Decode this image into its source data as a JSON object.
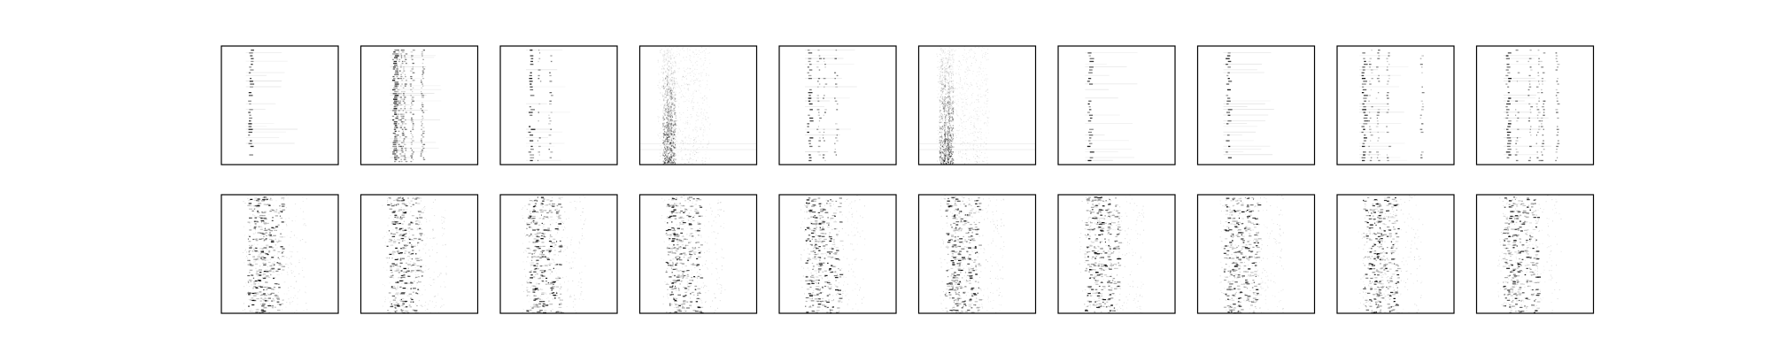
{
  "figure": {
    "background": "#ffffff",
    "frame_color": "#000000",
    "ink_color": "#000000"
  },
  "chart_data": [
    {
      "type": "heatmap",
      "row": 1,
      "col": 1,
      "pattern": "sparse-single-column",
      "columns": [
        0.24
      ],
      "density": 0.5,
      "axes_ticks": false,
      "grid": false
    },
    {
      "type": "heatmap",
      "row": 1,
      "col": 2,
      "pattern": "dense-columns",
      "columns": [
        0.28,
        0.31,
        0.34,
        0.37,
        0.43,
        0.52
      ],
      "density": 0.85,
      "axes_ticks": false,
      "grid": false
    },
    {
      "type": "heatmap",
      "row": 1,
      "col": 3,
      "pattern": "sparse-columns",
      "columns": [
        0.25,
        0.33,
        0.42
      ],
      "density": 0.45,
      "axes_ticks": false,
      "grid": false
    },
    {
      "type": "heatmap",
      "row": 1,
      "col": 4,
      "pattern": "vertical-band-noise",
      "columns": [
        0.22,
        0.25,
        0.28
      ],
      "density": 0.9,
      "axes_ticks": false,
      "grid": false
    },
    {
      "type": "heatmap",
      "row": 1,
      "col": 5,
      "pattern": "sparse-columns",
      "columns": [
        0.25,
        0.33,
        0.38,
        0.48
      ],
      "density": 0.55,
      "axes_ticks": false,
      "grid": false
    },
    {
      "type": "heatmap",
      "row": 1,
      "col": 6,
      "pattern": "vertical-band-noise",
      "columns": [
        0.2,
        0.24,
        0.27
      ],
      "density": 0.9,
      "axes_ticks": false,
      "grid": false
    },
    {
      "type": "heatmap",
      "row": 1,
      "col": 7,
      "pattern": "sparse-single-column",
      "columns": [
        0.26
      ],
      "density": 0.4,
      "axes_ticks": false,
      "grid": false
    },
    {
      "type": "heatmap",
      "row": 1,
      "col": 8,
      "pattern": "sparse-single-column",
      "columns": [
        0.25
      ],
      "density": 0.3,
      "axes_ticks": false,
      "grid": false
    },
    {
      "type": "heatmap",
      "row": 1,
      "col": 9,
      "pattern": "sparse-columns",
      "columns": [
        0.22,
        0.28,
        0.34,
        0.43,
        0.72
      ],
      "density": 0.6,
      "axes_ticks": false,
      "grid": false
    },
    {
      "type": "heatmap",
      "row": 1,
      "col": 10,
      "pattern": "sparse-columns",
      "columns": [
        0.26,
        0.34,
        0.45,
        0.52,
        0.56,
        0.68
      ],
      "density": 0.6,
      "axes_ticks": false,
      "grid": false
    },
    {
      "type": "heatmap",
      "row": 2,
      "col": 1,
      "pattern": "repeated-blocks",
      "columns": [
        0.25,
        0.3,
        0.36,
        0.45
      ],
      "density": 0.8,
      "axes_ticks": false,
      "grid": false
    },
    {
      "type": "heatmap",
      "row": 2,
      "col": 2,
      "pattern": "repeated-blocks",
      "columns": [
        0.25,
        0.3,
        0.36,
        0.45
      ],
      "density": 0.8,
      "axes_ticks": false,
      "grid": false
    },
    {
      "type": "heatmap",
      "row": 2,
      "col": 3,
      "pattern": "repeated-blocks",
      "columns": [
        0.25,
        0.3,
        0.36,
        0.45
      ],
      "density": 0.8,
      "axes_ticks": false,
      "grid": false
    },
    {
      "type": "heatmap",
      "row": 2,
      "col": 4,
      "pattern": "repeated-blocks",
      "columns": [
        0.25,
        0.3,
        0.36,
        0.45
      ],
      "density": 0.8,
      "axes_ticks": false,
      "grid": false
    },
    {
      "type": "heatmap",
      "row": 2,
      "col": 5,
      "pattern": "repeated-blocks",
      "columns": [
        0.25,
        0.3,
        0.36,
        0.45
      ],
      "density": 0.8,
      "axes_ticks": false,
      "grid": false
    },
    {
      "type": "heatmap",
      "row": 2,
      "col": 6,
      "pattern": "repeated-blocks",
      "columns": [
        0.25,
        0.3,
        0.36,
        0.45
      ],
      "density": 0.8,
      "axes_ticks": false,
      "grid": false
    },
    {
      "type": "heatmap",
      "row": 2,
      "col": 7,
      "pattern": "repeated-blocks",
      "columns": [
        0.25,
        0.3,
        0.36,
        0.45
      ],
      "density": 0.8,
      "axes_ticks": false,
      "grid": false
    },
    {
      "type": "heatmap",
      "row": 2,
      "col": 8,
      "pattern": "repeated-blocks",
      "columns": [
        0.25,
        0.3,
        0.36,
        0.45
      ],
      "density": 0.8,
      "axes_ticks": false,
      "grid": false
    },
    {
      "type": "heatmap",
      "row": 2,
      "col": 9,
      "pattern": "repeated-blocks",
      "columns": [
        0.25,
        0.3,
        0.36,
        0.45
      ],
      "density": 0.8,
      "axes_ticks": false,
      "grid": false
    },
    {
      "type": "heatmap",
      "row": 2,
      "col": 10,
      "pattern": "repeated-blocks",
      "columns": [
        0.25,
        0.3,
        0.36,
        0.45
      ],
      "density": 0.8,
      "axes_ticks": false,
      "grid": false
    }
  ]
}
